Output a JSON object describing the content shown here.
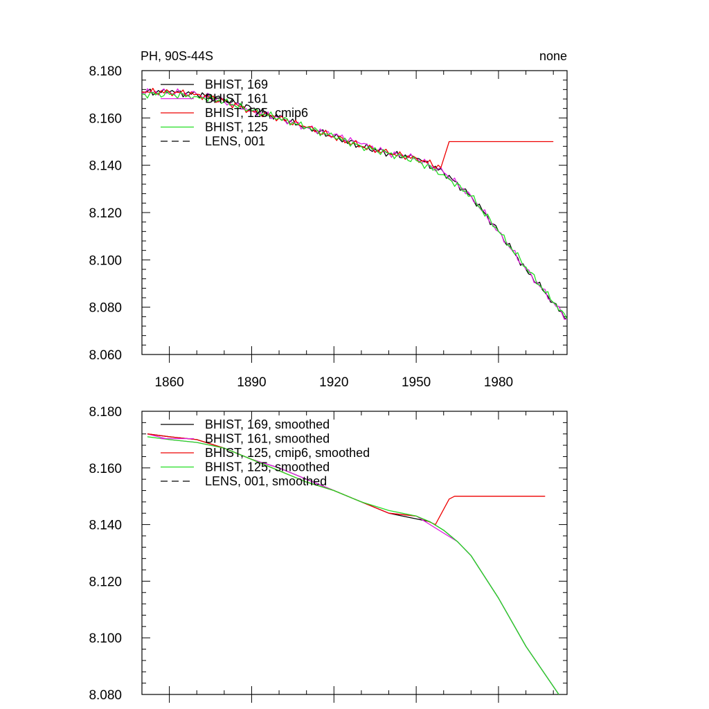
{
  "chart_data": [
    {
      "type": "line",
      "title": "PH, 90S-44S",
      "title_right": "none",
      "xlim": [
        1850,
        2005
      ],
      "ylim": [
        8.06,
        8.18
      ],
      "xticks": [
        1860,
        1890,
        1920,
        1950,
        1980
      ],
      "xtick_labels": [
        "1860",
        "1890",
        "1920",
        "1950",
        "1980"
      ],
      "yticks": [
        8.06,
        8.08,
        8.1,
        8.12,
        8.14,
        8.16,
        8.18
      ],
      "ytick_labels": [
        "8.060",
        "8.080",
        "8.100",
        "8.120",
        "8.140",
        "8.160",
        "8.180"
      ],
      "legend_position": "top-left",
      "series": [
        {
          "name": "BHIST, 169",
          "color": "#000000",
          "dash": "solid",
          "x": [
            1850,
            1860,
            1870,
            1880,
            1890,
            1900,
            1910,
            1920,
            1930,
            1940,
            1950,
            1960,
            1970,
            1980,
            1990,
            2000,
            2005
          ],
          "y": [
            8.171,
            8.171,
            8.17,
            8.168,
            8.164,
            8.16,
            8.156,
            8.152,
            8.148,
            8.145,
            8.143,
            8.137,
            8.127,
            8.112,
            8.096,
            8.082,
            8.075
          ]
        },
        {
          "name": "BHIST, 161",
          "color": "#e020e0",
          "dash": "solid",
          "x": [
            1850,
            1860,
            1870,
            1880,
            1890,
            1900,
            1910,
            1920,
            1930,
            1940,
            1950,
            1960,
            1970,
            1980,
            1990,
            2000,
            2005
          ],
          "y": [
            8.171,
            8.171,
            8.17,
            8.167,
            8.163,
            8.16,
            8.156,
            8.153,
            8.149,
            8.145,
            8.143,
            8.137,
            8.127,
            8.112,
            8.096,
            8.082,
            8.075
          ]
        },
        {
          "name": "BHIST, 125, cmip6",
          "color": "#ee0000",
          "dash": "solid",
          "x": [
            1850,
            1860,
            1870,
            1880,
            1890,
            1900,
            1910,
            1920,
            1930,
            1940,
            1950,
            1959,
            1962,
            2000
          ],
          "y": [
            8.171,
            8.171,
            8.17,
            8.167,
            8.163,
            8.16,
            8.156,
            8.152,
            8.148,
            8.145,
            8.143,
            8.139,
            8.15,
            8.15
          ]
        },
        {
          "name": "BHIST, 125",
          "color": "#22dd22",
          "dash": "solid",
          "x": [
            1850,
            1860,
            1870,
            1880,
            1890,
            1900,
            1910,
            1920,
            1930,
            1940,
            1950,
            1960,
            1970,
            1980,
            1990,
            2000,
            2005
          ],
          "y": [
            8.17,
            8.17,
            8.169,
            8.167,
            8.163,
            8.16,
            8.156,
            8.152,
            8.148,
            8.145,
            8.142,
            8.136,
            8.127,
            8.112,
            8.097,
            8.082,
            8.075
          ]
        },
        {
          "name": "LENS, 001",
          "color": "#000000",
          "dash": "dashed",
          "x": [],
          "y": []
        }
      ]
    },
    {
      "type": "line",
      "title": "",
      "xlim": [
        1850,
        2005
      ],
      "ylim": [
        8.08,
        8.18
      ],
      "xticks": [
        1860,
        1890,
        1920,
        1950,
        1980
      ],
      "xtick_labels": [],
      "yticks": [
        8.08,
        8.1,
        8.12,
        8.14,
        8.16,
        8.18
      ],
      "ytick_labels": [
        "8.080",
        "8.100",
        "8.120",
        "8.140",
        "8.160",
        "8.180"
      ],
      "legend_position": "top-left",
      "series": [
        {
          "name": "BHIST, 169, smoothed",
          "color": "#000000",
          "dash": "solid",
          "x": [
            1852,
            1860,
            1870,
            1880,
            1890,
            1900,
            1910,
            1920,
            1930,
            1940,
            1950,
            1955,
            1960,
            1965,
            1970,
            1980,
            1990,
            2002
          ],
          "y": [
            8.172,
            8.171,
            8.17,
            8.167,
            8.163,
            8.16,
            8.156,
            8.152,
            8.148,
            8.144,
            8.142,
            8.141,
            8.138,
            8.134,
            8.129,
            8.114,
            8.097,
            8.08
          ]
        },
        {
          "name": "BHIST, 161, smoothed",
          "color": "#e020e0",
          "dash": "solid",
          "x": [
            1852,
            1860,
            1870,
            1880,
            1890,
            1900,
            1910,
            1920,
            1930,
            1940,
            1950,
            1955,
            1960,
            1965,
            1970,
            1980,
            1990,
            2002
          ],
          "y": [
            8.172,
            8.17,
            8.169,
            8.167,
            8.163,
            8.16,
            8.156,
            8.152,
            8.148,
            8.144,
            8.143,
            8.14,
            8.137,
            8.134,
            8.129,
            8.114,
            8.097,
            8.08
          ]
        },
        {
          "name": "BHIST, 125, cmip6, smoothed",
          "color": "#ee0000",
          "dash": "solid",
          "x": [
            1852,
            1860,
            1870,
            1880,
            1890,
            1900,
            1910,
            1920,
            1930,
            1940,
            1950,
            1957,
            1962,
            1964,
            1997
          ],
          "y": [
            8.172,
            8.171,
            8.17,
            8.167,
            8.163,
            8.159,
            8.155,
            8.152,
            8.148,
            8.144,
            8.143,
            8.14,
            8.149,
            8.15,
            8.15
          ]
        },
        {
          "name": "BHIST, 125, smoothed",
          "color": "#22dd22",
          "dash": "solid",
          "x": [
            1852,
            1860,
            1870,
            1880,
            1890,
            1900,
            1910,
            1920,
            1930,
            1940,
            1950,
            1955,
            1960,
            1965,
            1970,
            1980,
            1990,
            2002
          ],
          "y": [
            8.171,
            8.17,
            8.169,
            8.167,
            8.163,
            8.159,
            8.155,
            8.152,
            8.148,
            8.145,
            8.143,
            8.141,
            8.138,
            8.134,
            8.129,
            8.114,
            8.097,
            8.08
          ]
        },
        {
          "name": "LENS, 001, smoothed",
          "color": "#000000",
          "dash": "dashed",
          "x": [],
          "y": []
        }
      ]
    }
  ]
}
